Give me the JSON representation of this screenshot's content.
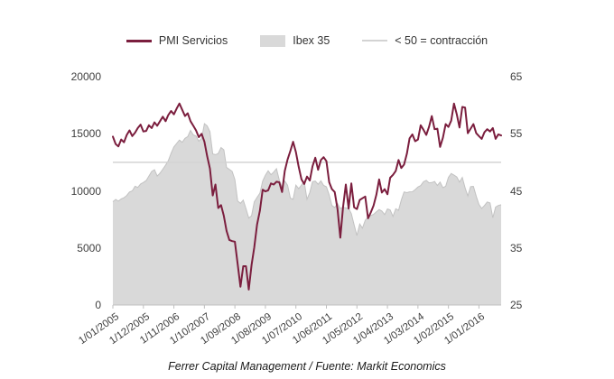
{
  "chart_data": {
    "type": "line",
    "title": "",
    "footer": "Ferrer Capital Management / Fuente: Markit Economics",
    "x_start": "1/01/2005",
    "x_frequency": "monthly",
    "legend": [
      {
        "label": "PMI Servicios",
        "swatch": "line",
        "color": "#7b1e3e"
      },
      {
        "label": "Ibex 35",
        "swatch": "area",
        "color": "#d9d9d9"
      },
      {
        "label": "< 50 = contracción",
        "swatch": "refline",
        "color": "#d3d3d3"
      }
    ],
    "left_axis": {
      "range": [
        0,
        20000
      ],
      "ticks": [
        0,
        5000,
        10000,
        15000,
        20000
      ]
    },
    "right_axis": {
      "range": [
        25,
        65
      ],
      "ticks": [
        25,
        35,
        45,
        55,
        65
      ]
    },
    "x_tick_labels": [
      "1/01/2005",
      "1/12/2005",
      "1/11/2006",
      "1/10/2007",
      "1/09/2008",
      "1/08/2009",
      "1/07/2010",
      "1/06/2011",
      "1/05/2012",
      "1/04/2013",
      "1/03/2014",
      "1/02/2015",
      "1/01/2016"
    ],
    "x_tick_month_indices": [
      0,
      11,
      22,
      33,
      44,
      55,
      66,
      77,
      88,
      99,
      110,
      121,
      132
    ],
    "reference_line": {
      "label": "< 50 = contracción",
      "axis": "right",
      "value": 50,
      "color": "#d3d3d3"
    },
    "series": [
      {
        "name": "PMI Servicios",
        "axis": "right",
        "style": "line",
        "color": "#7b1e3e",
        "values": [
          54.5,
          53.2,
          52.8,
          54.0,
          53.5,
          54.8,
          55.6,
          54.6,
          55.2,
          56.0,
          56.6,
          55.4,
          55.5,
          56.5,
          56.0,
          57.0,
          56.4,
          57.2,
          58.0,
          57.2,
          58.3,
          59.0,
          58.4,
          59.4,
          60.3,
          59.2,
          58.1,
          58.6,
          57.2,
          56.4,
          55.6,
          54.4,
          55.0,
          53.6,
          51.1,
          48.9,
          44.2,
          46.1,
          42.0,
          42.5,
          40.6,
          38.0,
          36.4,
          36.2,
          36.1,
          32.2,
          28.2,
          31.8,
          31.8,
          27.7,
          32.0,
          35.1,
          39.1,
          41.5,
          45.2,
          44.9,
          45.1,
          46.3,
          46.1,
          46.6,
          46.5,
          44.8,
          48.5,
          50.5,
          52.0,
          53.6,
          51.8,
          49.2,
          47.0,
          46.2,
          47.5,
          46.8,
          49.3,
          50.8,
          48.7,
          50.4,
          50.9,
          50.2,
          46.5,
          45.3,
          44.8,
          41.8,
          36.8,
          42.1,
          46.1,
          41.9,
          46.3,
          42.1,
          41.8,
          43.4,
          43.7,
          44.0,
          40.2,
          41.2,
          42.4,
          44.3,
          47.0,
          44.7,
          45.3,
          44.4,
          47.3,
          47.8,
          48.5,
          50.4,
          49.0,
          49.6,
          51.5,
          54.2,
          54.9,
          53.7,
          54.0,
          56.5,
          55.7,
          54.8,
          56.2,
          58.1,
          55.8,
          55.9,
          52.7,
          54.3,
          56.7,
          56.2,
          57.3,
          60.3,
          58.4,
          56.1,
          59.7,
          59.6,
          55.1,
          55.9,
          56.7,
          55.1,
          54.6,
          54.1,
          55.3,
          55.8,
          55.4,
          56.0,
          54.1,
          54.9,
          54.7
        ]
      },
      {
        "name": "Ibex 35",
        "axis": "left",
        "style": "area",
        "color": "#d9d9d9",
        "edge_color": "#c2c2c2",
        "values": [
          9050,
          9250,
          9100,
          9300,
          9400,
          9600,
          9900,
          10000,
          10400,
          10300,
          10600,
          10734,
          10900,
          11300,
          11700,
          11850,
          11300,
          11550,
          11900,
          12250,
          12650,
          13300,
          13850,
          14147,
          14450,
          14250,
          14600,
          14750,
          15300,
          14900,
          14800,
          14350,
          14600,
          15890,
          15700,
          15182,
          13230,
          13170,
          13270,
          13798,
          13600,
          12046,
          11881,
          11707,
          10988,
          9116,
          8910,
          9196,
          8450,
          7621,
          7815,
          9038,
          9424,
          9787,
          10855,
          11365,
          11756,
          11415,
          11645,
          11940,
          10948,
          10333,
          10871,
          10492,
          9359,
          9263,
          10500,
          10187,
          10514,
          10812,
          9267,
          9859,
          10806,
          10850,
          10576,
          10879,
          10476,
          10359,
          9630,
          8718,
          8546,
          8895,
          8449,
          8566,
          8509,
          8465,
          8008,
          7011,
          6090,
          7102,
          6738,
          7420,
          7708,
          7843,
          7934,
          8168,
          8362,
          8230,
          7920,
          8419,
          8321,
          7763,
          8433,
          8290,
          9186,
          9908,
          9838,
          9916,
          9920,
          10114,
          10340,
          10459,
          10798,
          10923,
          10707,
          10728,
          10825,
          10477,
          10770,
          10280,
          10403,
          11178,
          11521,
          11385,
          11217,
          10769,
          11180,
          10259,
          9560,
          10360,
          10386,
          9544,
          8816,
          8461,
          8723,
          9025,
          8939,
          7645,
          8587,
          8717,
          8779
        ]
      }
    ]
  }
}
